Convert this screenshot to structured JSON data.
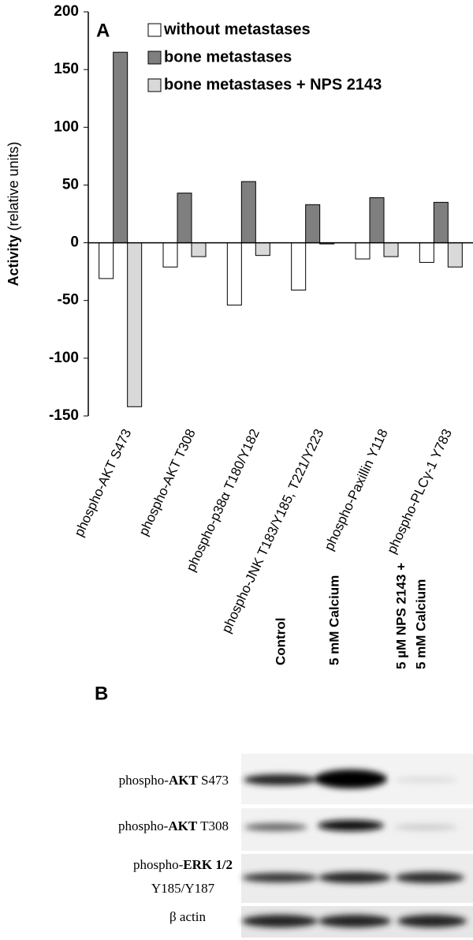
{
  "chart_data": {
    "type": "bar",
    "panel": "A",
    "ylabel": "Activity",
    "ylabel_units": "(relative units)",
    "categories": [
      "phospho-AKT S473",
      "phospho-AKT T308",
      "phospho-p38α T180/Y182",
      "phospho-JNK T183/Y185, T221/Y223",
      "phospho-Paxillin Y118",
      "phospho-PLCγ-1 Y783"
    ],
    "series": [
      {
        "name": "without metastases",
        "color": "#ffffff",
        "values": [
          -31,
          -21,
          -54,
          -41,
          -14,
          -17
        ]
      },
      {
        "name": "bone metastases",
        "color": "#7f7f7f",
        "values": [
          165,
          43,
          53,
          33,
          39,
          35
        ]
      },
      {
        "name": "bone metastases + NPS 2143",
        "color": "#d9d9d9",
        "values": [
          -142,
          -12,
          -11,
          -1,
          -12,
          -21
        ]
      }
    ],
    "ylim": [
      -150,
      200
    ],
    "yticks": [
      -150,
      -100,
      -50,
      0,
      50,
      100,
      150,
      200
    ]
  },
  "blot": {
    "panel": "B",
    "columns": [
      [
        "Control"
      ],
      [
        "5 mM Calcium"
      ],
      [
        "5 µM NPS 2143 +",
        "5 mM Calcium"
      ]
    ],
    "rows": [
      {
        "prefix": "phospho-",
        "protein": "AKT",
        "site": " S473"
      },
      {
        "prefix": "phospho-",
        "protein": "AKT",
        "site": " T308"
      },
      {
        "prefix": "phospho-",
        "protein": "ERK 1/2",
        "site": "Y185/Y187"
      },
      {
        "prefix": "β actin"
      }
    ]
  }
}
